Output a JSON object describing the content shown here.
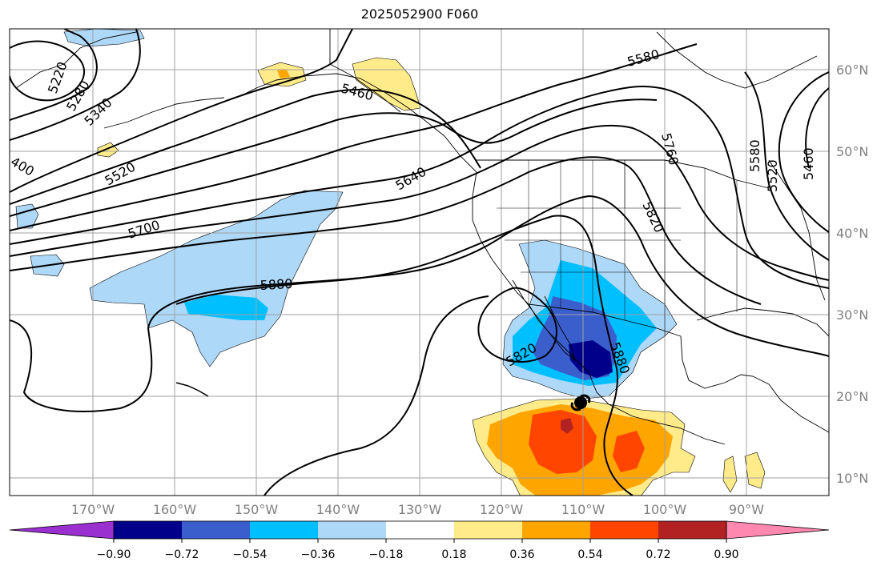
{
  "title": "2025052900 F060",
  "lon_labels": [
    "170°W",
    "160°W",
    "150°W",
    "140°W",
    "130°W",
    "120°W",
    "110°W",
    "100°W",
    "90°W"
  ],
  "lat_labels": [
    "60°N",
    "50°N",
    "40°N",
    "30°N",
    "20°N",
    "10°N"
  ],
  "contour_labels": [
    "5220",
    "5280",
    "5340",
    "400",
    "5460",
    "5520",
    "5580",
    "5640",
    "5700",
    "5760",
    "5820",
    "5880",
    "5820",
    "5880",
    "5580",
    "5520",
    "5460"
  ],
  "colorbar": {
    "tick_labels": [
      "−0.90",
      "−0.72",
      "−0.54",
      "−0.36",
      "−0.18",
      "0.18",
      "0.36",
      "0.54",
      "0.72",
      "0.90"
    ],
    "colors": [
      "#9b30d0",
      "#00008b",
      "#3a5fcd",
      "#00bfff",
      "#add8f8",
      "#ffffff",
      "#ffeb8a",
      "#ffa500",
      "#ff4500",
      "#b22222",
      "#ff88b0"
    ]
  },
  "colors": {
    "neg_light": "#add8f8",
    "neg_mid": "#00bfff",
    "neg_deep": "#3a5fcd",
    "neg_darkest": "#00008b",
    "pos_light": "#ffeb8a",
    "pos_mid": "#ffa500",
    "pos_strong": "#ff4500",
    "pos_max": "#b22222"
  },
  "storm_marker_icon": "tropical-cyclone-icon"
}
